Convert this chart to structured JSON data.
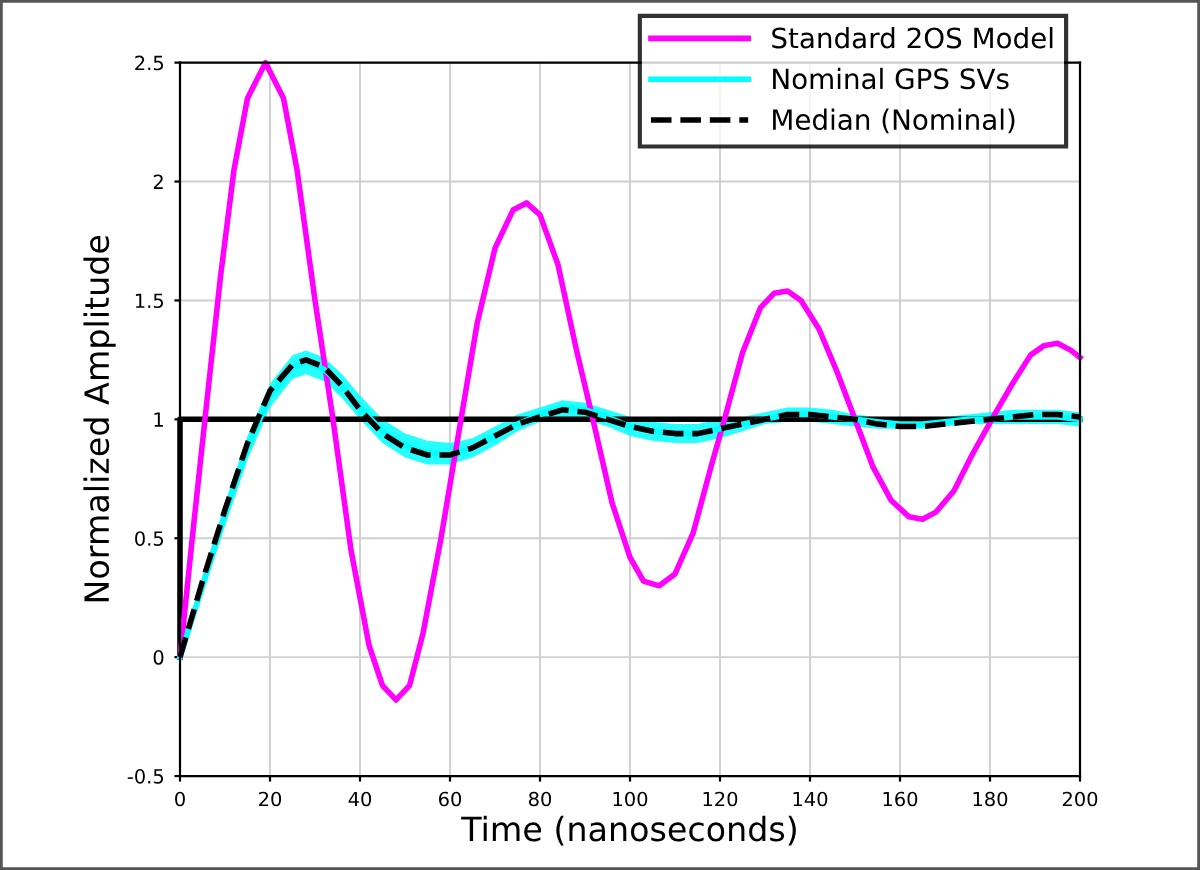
{
  "chart_data": {
    "type": "line",
    "xlabel": "Time (nanoseconds)",
    "ylabel": "Normalized Amplitude",
    "xlim": [
      0,
      200
    ],
    "ylim": [
      -0.5,
      2.5
    ],
    "xticks": [
      0,
      20,
      40,
      60,
      80,
      100,
      120,
      140,
      160,
      180,
      200
    ],
    "yticks": [
      -0.5,
      0,
      0.5,
      1,
      1.5,
      2,
      2.5
    ],
    "grid": true,
    "legend": "top right",
    "series": [
      {
        "color": "#000000",
        "line_style": "solid",
        "x": [
          0,
          0,
          200
        ],
        "values": [
          0,
          1,
          1
        ]
      },
      {
        "name": "Standard 2OS Model",
        "color": "#ff00ff",
        "line_style": "solid",
        "x": [
          0,
          3,
          6,
          9,
          12,
          15,
          19,
          23,
          26,
          30,
          34,
          38,
          42,
          45,
          48,
          51,
          54,
          58,
          62,
          66,
          70,
          74,
          77,
          80,
          84,
          88,
          92,
          96,
          100,
          103,
          106.5,
          110,
          114,
          118,
          121,
          125,
          129,
          132,
          135,
          138,
          142,
          146,
          150,
          154,
          158,
          162,
          165,
          168,
          172,
          176,
          181,
          185,
          189,
          192,
          195,
          198,
          200
        ],
        "values": [
          0,
          0.55,
          1.08,
          1.6,
          2.05,
          2.35,
          2.5,
          2.35,
          2.05,
          1.5,
          1.0,
          0.45,
          0.05,
          -0.12,
          -0.18,
          -0.12,
          0.1,
          0.5,
          0.95,
          1.4,
          1.72,
          1.88,
          1.91,
          1.86,
          1.65,
          1.3,
          0.98,
          0.65,
          0.42,
          0.32,
          0.3,
          0.35,
          0.52,
          0.8,
          1.0,
          1.28,
          1.47,
          1.53,
          1.54,
          1.5,
          1.38,
          1.2,
          1.0,
          0.8,
          0.66,
          0.59,
          0.58,
          0.61,
          0.7,
          0.85,
          1.02,
          1.15,
          1.27,
          1.31,
          1.32,
          1.29,
          1.26
        ]
      },
      {
        "name": "Nominal GPS SVs",
        "color": "#00ffff",
        "line_style": "solid",
        "x": [
          0,
          5,
          10,
          15,
          20,
          25,
          28,
          32,
          36,
          40,
          45,
          50,
          55,
          60,
          65,
          70,
          75,
          80,
          85,
          90,
          95,
          100,
          105,
          110,
          115,
          120,
          125,
          130,
          135,
          140,
          145,
          150,
          155,
          160,
          165,
          170,
          175,
          180,
          185,
          190,
          195,
          200
        ],
        "values": [
          0,
          0.3,
          0.6,
          0.88,
          1.1,
          1.22,
          1.24,
          1.21,
          1.14,
          1.05,
          0.95,
          0.89,
          0.86,
          0.85,
          0.88,
          0.93,
          0.98,
          1.02,
          1.05,
          1.04,
          1.01,
          0.97,
          0.95,
          0.94,
          0.94,
          0.96,
          0.98,
          1.0,
          1.02,
          1.02,
          1.01,
          1.0,
          0.99,
          0.98,
          0.98,
          0.99,
          1.0,
          1.0,
          1.01,
          1.01,
          1.01,
          1.0
        ],
        "lower": [
          0,
          0.26,
          0.55,
          0.83,
          1.05,
          1.17,
          1.19,
          1.16,
          1.09,
          1.0,
          0.9,
          0.84,
          0.81,
          0.81,
          0.84,
          0.89,
          0.95,
          0.99,
          1.01,
          1.0,
          0.97,
          0.93,
          0.91,
          0.9,
          0.9,
          0.92,
          0.95,
          0.98,
          0.99,
          0.99,
          0.98,
          0.97,
          0.96,
          0.96,
          0.96,
          0.97,
          0.98,
          0.98,
          0.98,
          0.98,
          0.98,
          0.97
        ],
        "upper": [
          0,
          0.34,
          0.65,
          0.93,
          1.15,
          1.27,
          1.29,
          1.26,
          1.19,
          1.1,
          1.0,
          0.94,
          0.91,
          0.9,
          0.92,
          0.97,
          1.02,
          1.05,
          1.08,
          1.07,
          1.04,
          1.01,
          0.99,
          0.98,
          0.98,
          1.0,
          1.01,
          1.03,
          1.05,
          1.05,
          1.04,
          1.02,
          1.01,
          1.0,
          1.0,
          1.01,
          1.02,
          1.03,
          1.04,
          1.04,
          1.04,
          1.03
        ]
      },
      {
        "name": "Median (Nominal)",
        "color": "#000000",
        "line_style": "dashed",
        "x": [
          0,
          5,
          10,
          15,
          20,
          25,
          28,
          32,
          36,
          40,
          45,
          50,
          55,
          60,
          65,
          70,
          75,
          80,
          85,
          90,
          95,
          100,
          105,
          110,
          115,
          120,
          125,
          130,
          135,
          140,
          145,
          150,
          155,
          160,
          165,
          170,
          175,
          180,
          185,
          190,
          195,
          200
        ],
        "values": [
          0,
          0.32,
          0.62,
          0.9,
          1.12,
          1.23,
          1.25,
          1.22,
          1.14,
          1.04,
          0.94,
          0.88,
          0.85,
          0.85,
          0.88,
          0.93,
          0.98,
          1.01,
          1.04,
          1.03,
          1.0,
          0.97,
          0.95,
          0.94,
          0.94,
          0.96,
          0.98,
          1.0,
          1.02,
          1.02,
          1.01,
          1.0,
          0.98,
          0.97,
          0.97,
          0.98,
          0.99,
          1.0,
          1.01,
          1.02,
          1.02,
          1.01
        ]
      }
    ]
  }
}
